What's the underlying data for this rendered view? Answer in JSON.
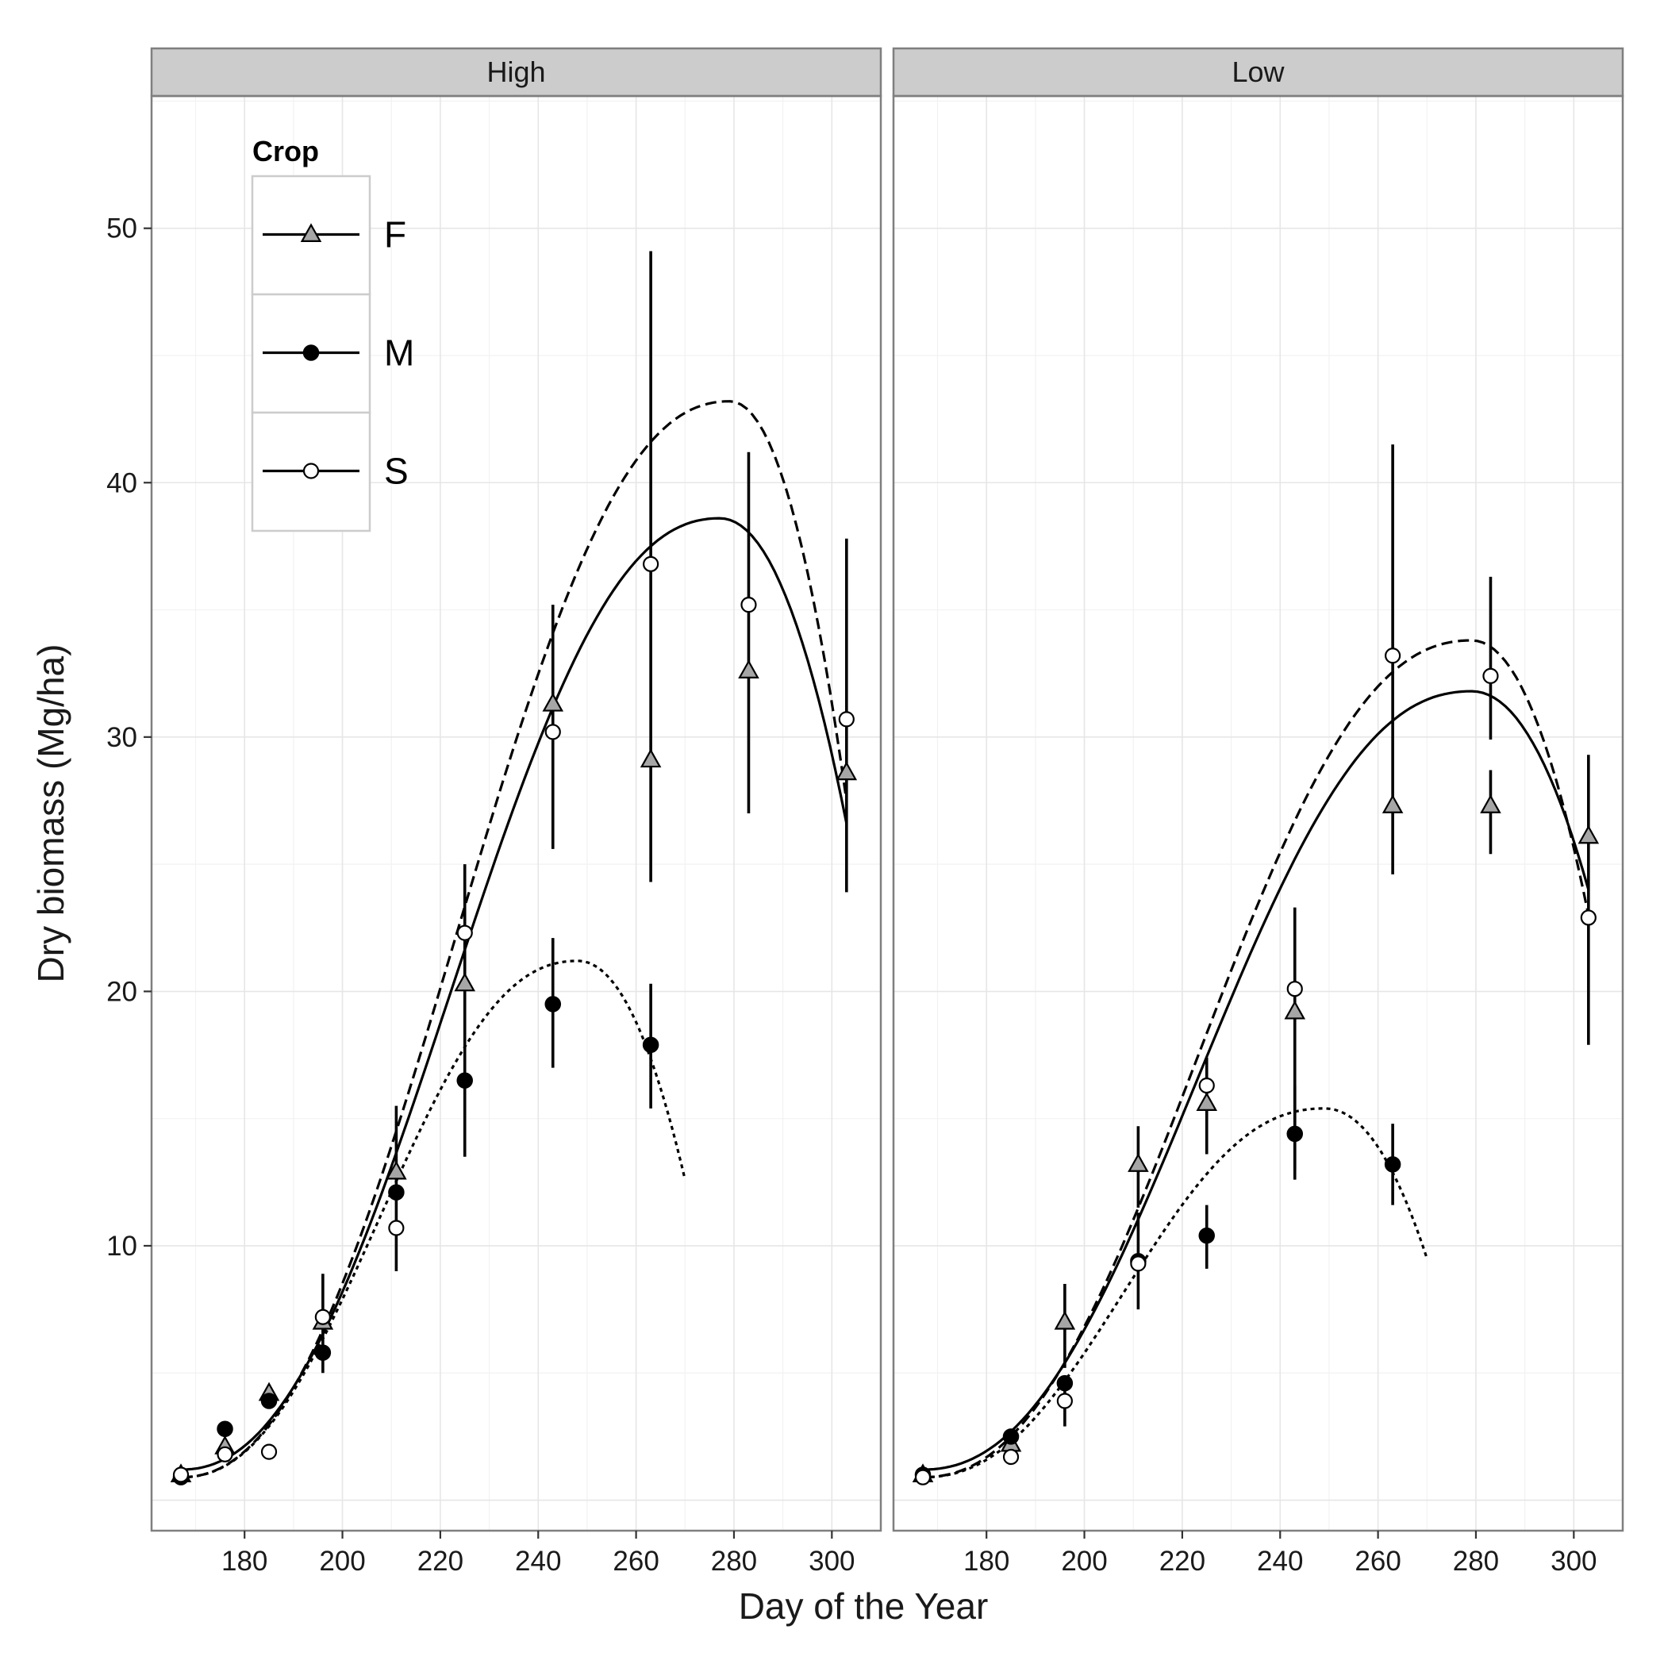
{
  "chart_data": {
    "type": "scatter",
    "xlabel": "Day of the Year",
    "ylabel": "Dry biomass (Mg/ha)",
    "xlim": [
      161,
      310
    ],
    "ylim": [
      -1.2,
      55.2
    ],
    "x_ticks": [
      180,
      200,
      220,
      240,
      260,
      280,
      300
    ],
    "y_ticks": [
      10,
      20,
      30,
      40,
      50
    ],
    "grid": true,
    "legend": {
      "title": "Crop",
      "placement": "top-left inside first panel",
      "entries": [
        {
          "label": "F",
          "marker": "triangle",
          "line": "solid"
        },
        {
          "label": "M",
          "marker": "filled-circle",
          "line": "dotted"
        },
        {
          "label": "S",
          "marker": "open-circle",
          "line": "dashed"
        }
      ]
    },
    "colors": {
      "strip_bg": "#cccccc",
      "panel_border": "#7f7f7f",
      "grid_major": "#e6e6e6",
      "grid_minor": "#f2f2f2",
      "triangle_fill": "#a6a6a6",
      "line": "#000000"
    },
    "panels": [
      {
        "strip": "High",
        "series": [
          {
            "name": "F",
            "marker": "triangle",
            "points": [
              {
                "x": 167,
                "y": 1.0
              },
              {
                "x": 176,
                "y": 2.1
              },
              {
                "x": 185,
                "y": 4.2
              },
              {
                "x": 196,
                "y": 7.0,
                "ymin": 5.0,
                "ymax": 8.9
              },
              {
                "x": 211,
                "y": 12.9,
                "ymin": 9.0,
                "ymax": 15.5
              },
              {
                "x": 225,
                "y": 20.3
              },
              {
                "x": 243,
                "y": 31.3,
                "ymin": 25.6,
                "ymax": 35.2
              },
              {
                "x": 263,
                "y": 29.1,
                "ymin": 24.3,
                "ymax": 49.1
              },
              {
                "x": 283,
                "y": 32.6,
                "ymin": 27.0,
                "ymax": 41.2
              },
              {
                "x": 303,
                "y": 28.6,
                "ymin": 23.9,
                "ymax": 37.8
              }
            ]
          },
          {
            "name": "M",
            "marker": "filled-circle",
            "points": [
              {
                "x": 167,
                "y": 0.9
              },
              {
                "x": 176,
                "y": 2.8
              },
              {
                "x": 185,
                "y": 3.9
              },
              {
                "x": 196,
                "y": 5.8
              },
              {
                "x": 211,
                "y": 12.1
              },
              {
                "x": 225,
                "y": 16.5,
                "ymin": 13.5,
                "ymax": 25.0
              },
              {
                "x": 243,
                "y": 19.5,
                "ymin": 17.0,
                "ymax": 22.1
              },
              {
                "x": 263,
                "y": 17.9,
                "ymin": 15.4,
                "ymax": 20.3
              }
            ]
          },
          {
            "name": "S",
            "marker": "open-circle",
            "points": [
              {
                "x": 167,
                "y": 1.0
              },
              {
                "x": 176,
                "y": 1.8
              },
              {
                "x": 185,
                "y": 1.9
              },
              {
                "x": 196,
                "y": 7.2
              },
              {
                "x": 211,
                "y": 10.7
              },
              {
                "x": 225,
                "y": 22.3
              },
              {
                "x": 243,
                "y": 30.2
              },
              {
                "x": 263,
                "y": 36.8
              },
              {
                "x": 283,
                "y": 35.2
              },
              {
                "x": 303,
                "y": 30.7
              }
            ]
          }
        ],
        "curves": [
          {
            "name": "F",
            "style": "solid",
            "x0": 167,
            "x1": 303,
            "peak_x": 277,
            "peak_y": 38.6,
            "start_y": 1.2,
            "end_y": 26.6
          },
          {
            "name": "M",
            "style": "dotted",
            "x0": 167,
            "x1": 270,
            "peak_x": 248,
            "peak_y": 21.2,
            "start_y": 0.9,
            "end_y": 12.6
          },
          {
            "name": "S",
            "style": "dashed",
            "x0": 167,
            "x1": 303,
            "peak_x": 279,
            "peak_y": 43.2,
            "start_y": 0.9,
            "end_y": 27.5
          }
        ]
      },
      {
        "strip": "Low",
        "series": [
          {
            "name": "F",
            "marker": "triangle",
            "points": [
              {
                "x": 167,
                "y": 1.0
              },
              {
                "x": 185,
                "y": 2.2
              },
              {
                "x": 196,
                "y": 7.0,
                "ymin": 5.2,
                "ymax": 8.5
              },
              {
                "x": 211,
                "y": 13.2,
                "ymin": 11.5,
                "ymax": 14.7
              },
              {
                "x": 225,
                "y": 15.6,
                "ymin": 13.6,
                "ymax": 17.4
              },
              {
                "x": 243,
                "y": 19.2,
                "ymin": 13.0,
                "ymax": 23.3
              },
              {
                "x": 263,
                "y": 27.3,
                "ymin": 24.6,
                "ymax": 41.5
              },
              {
                "x": 283,
                "y": 27.3,
                "ymin": 25.4,
                "ymax": 28.7
              },
              {
                "x": 303,
                "y": 26.1,
                "ymin": 17.9,
                "ymax": 29.3
              }
            ]
          },
          {
            "name": "M",
            "marker": "filled-circle",
            "points": [
              {
                "x": 167,
                "y": 1.0
              },
              {
                "x": 185,
                "y": 2.5
              },
              {
                "x": 196,
                "y": 4.6
              },
              {
                "x": 211,
                "y": 9.4,
                "ymin": 7.5,
                "ymax": 11.3
              },
              {
                "x": 225,
                "y": 10.4,
                "ymin": 9.1,
                "ymax": 11.6
              },
              {
                "x": 243,
                "y": 14.4,
                "ymin": 12.6,
                "ymax": 16.3
              },
              {
                "x": 263,
                "y": 13.2,
                "ymin": 11.6,
                "ymax": 14.8
              }
            ]
          },
          {
            "name": "S",
            "marker": "open-circle",
            "points": [
              {
                "x": 167,
                "y": 0.9
              },
              {
                "x": 185,
                "y": 1.7
              },
              {
                "x": 196,
                "y": 3.9,
                "ymin": 2.9,
                "ymax": 4.8
              },
              {
                "x": 211,
                "y": 9.3
              },
              {
                "x": 225,
                "y": 16.3
              },
              {
                "x": 243,
                "y": 20.1
              },
              {
                "x": 263,
                "y": 33.2
              },
              {
                "x": 283,
                "y": 32.4,
                "ymin": 29.9,
                "ymax": 36.3
              },
              {
                "x": 303,
                "y": 22.9
              }
            ]
          }
        ],
        "curves": [
          {
            "name": "F",
            "style": "solid",
            "x0": 167,
            "x1": 303,
            "peak_x": 279,
            "peak_y": 31.8,
            "start_y": 1.2,
            "end_y": 24.0
          },
          {
            "name": "M",
            "style": "dotted",
            "x0": 167,
            "x1": 270,
            "peak_x": 249,
            "peak_y": 15.4,
            "start_y": 0.9,
            "end_y": 9.5
          },
          {
            "name": "S",
            "style": "dashed",
            "x0": 167,
            "x1": 303,
            "peak_x": 279,
            "peak_y": 33.8,
            "start_y": 0.9,
            "end_y": 23.0
          }
        ]
      }
    ]
  }
}
